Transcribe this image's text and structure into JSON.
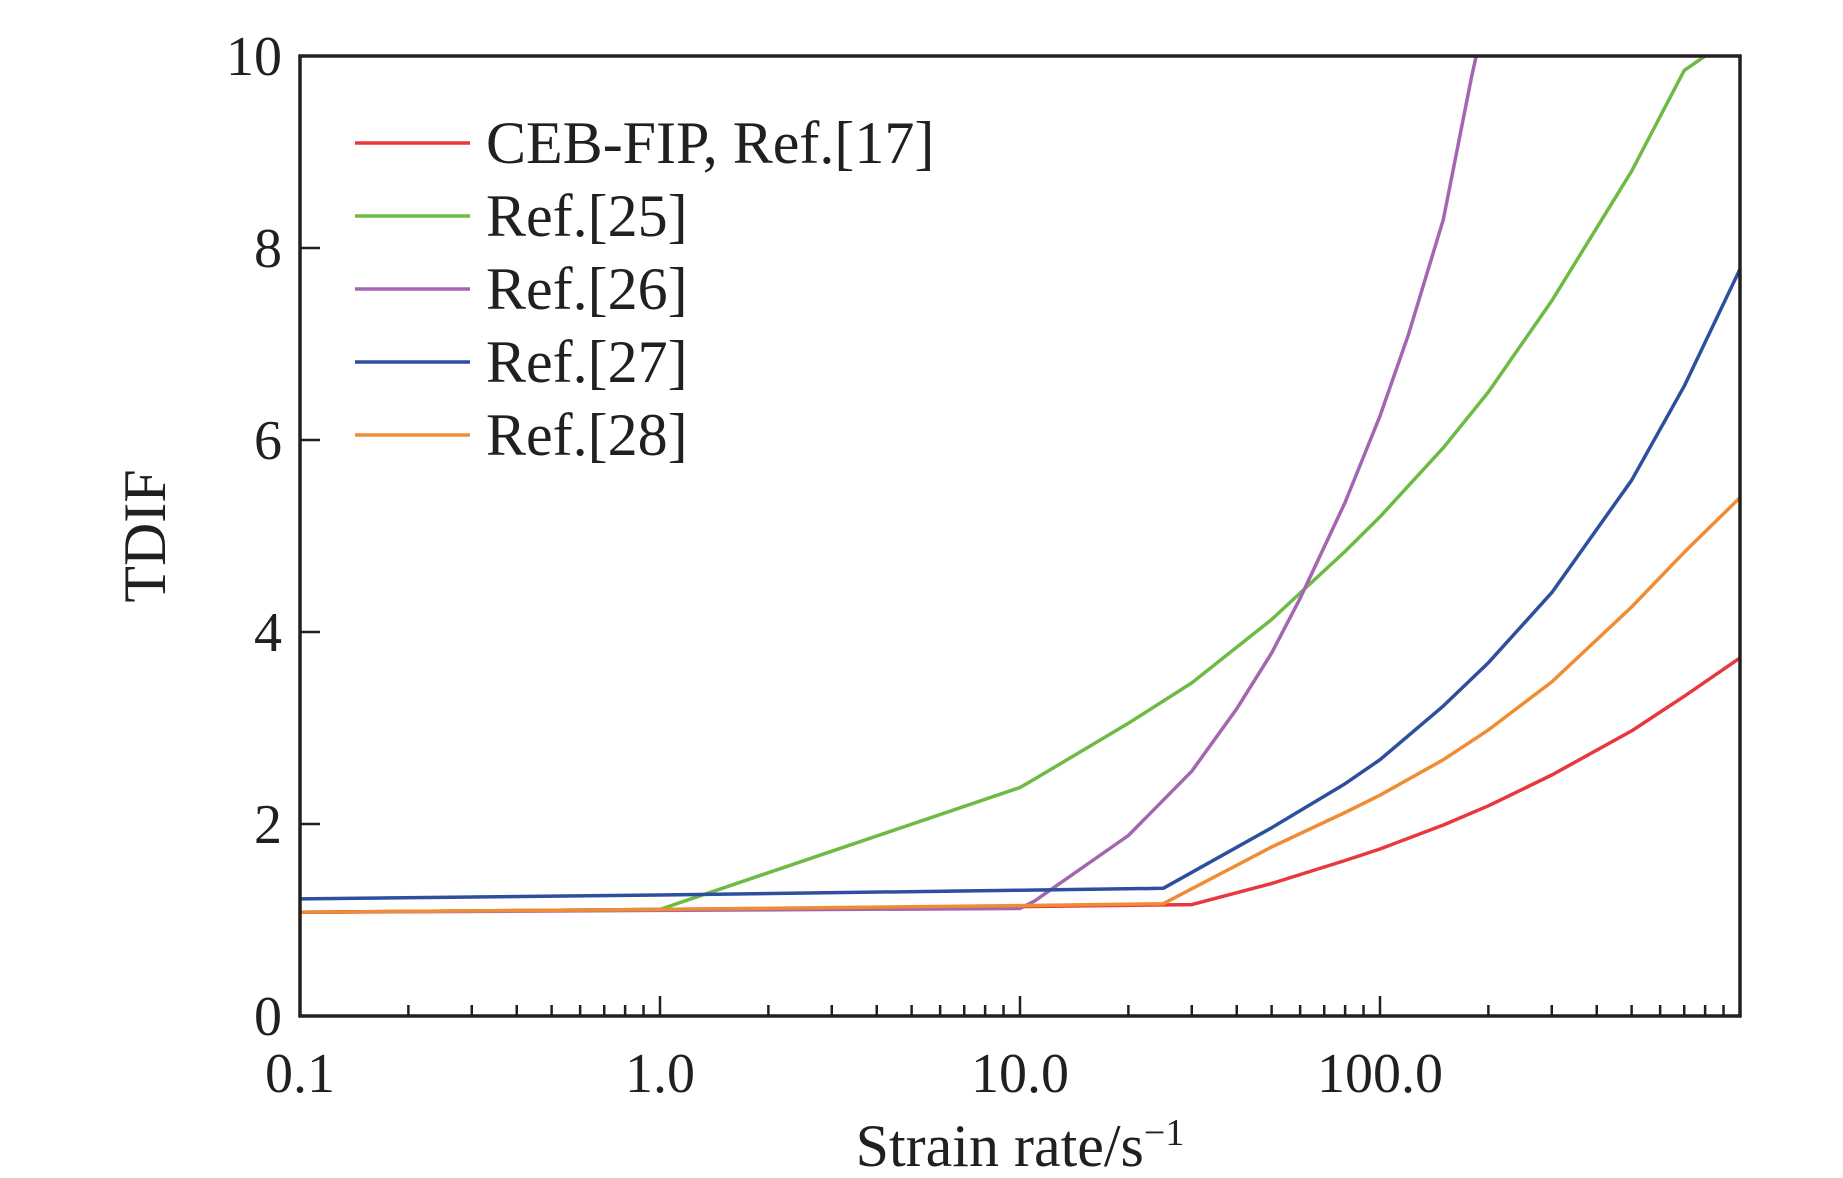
{
  "chart_data": {
    "type": "line",
    "title": "",
    "xlabel": "Strain rate/s",
    "xlabel_superscript": "−1",
    "ylabel": "TDIF",
    "x_scale": "log",
    "xlim": [
      0.1,
      1000
    ],
    "ylim": [
      0,
      10
    ],
    "x_ticks": [
      0.1,
      1,
      10,
      100
    ],
    "x_tick_labels": [
      "0.1",
      "1.0",
      "10.0",
      "100.0"
    ],
    "y_ticks": [
      0,
      2,
      4,
      6,
      8,
      10
    ],
    "y_tick_labels": [
      "0",
      "2",
      "4",
      "6",
      "8",
      "10"
    ],
    "grid": false,
    "legend_position": "top-left",
    "series": [
      {
        "name": "CEB-FIP, Ref.[17]",
        "color": "#e8383d",
        "x": [
          0.1,
          1,
          10,
          30,
          50,
          80,
          100,
          150,
          200,
          300,
          500,
          700,
          1000
        ],
        "y": [
          1.08,
          1.11,
          1.14,
          1.16,
          1.38,
          1.62,
          1.74,
          1.99,
          2.19,
          2.51,
          2.97,
          3.33,
          3.73
        ]
      },
      {
        "name": "Ref.[25]",
        "color": "#6dbb45",
        "x": [
          0.1,
          1,
          10,
          11,
          20,
          30,
          50,
          80,
          100,
          150,
          200,
          300,
          500,
          700,
          800
        ],
        "y": [
          1.08,
          1.11,
          2.38,
          2.47,
          3.05,
          3.47,
          4.13,
          4.84,
          5.2,
          5.92,
          6.5,
          7.45,
          8.8,
          9.85,
          10.0
        ]
      },
      {
        "name": "Ref.[26]",
        "color": "#a466b1",
        "x": [
          0.1,
          1,
          10,
          11,
          20,
          30,
          40,
          50,
          60,
          80,
          100,
          120,
          150,
          180,
          185
        ],
        "y": [
          1.08,
          1.1,
          1.12,
          1.2,
          1.88,
          2.55,
          3.2,
          3.78,
          4.35,
          5.35,
          6.25,
          7.1,
          8.3,
          9.8,
          10.0
        ]
      },
      {
        "name": "Ref.[27]",
        "color": "#2d4f9e",
        "x": [
          0.1,
          1,
          10,
          25,
          50,
          80,
          100,
          150,
          200,
          300,
          500,
          700,
          1000
        ],
        "y": [
          1.22,
          1.26,
          1.31,
          1.33,
          1.96,
          2.42,
          2.67,
          3.23,
          3.68,
          4.41,
          5.58,
          6.56,
          7.78
        ]
      },
      {
        "name": "Ref.[28]",
        "color": "#ef8c34",
        "x": [
          0.1,
          1,
          10,
          25,
          50,
          80,
          100,
          150,
          200,
          300,
          500,
          700,
          1000
        ],
        "y": [
          1.08,
          1.11,
          1.15,
          1.17,
          1.76,
          2.12,
          2.3,
          2.67,
          2.98,
          3.48,
          4.26,
          4.83,
          5.4
        ]
      }
    ]
  }
}
